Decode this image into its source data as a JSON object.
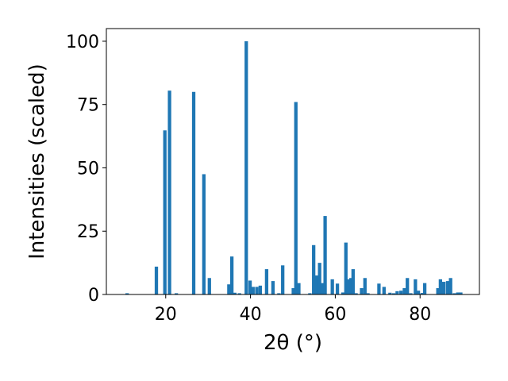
{
  "chart_data": {
    "type": "bar",
    "xlabel": "2θ (°)",
    "ylabel": "Intensities (scaled)",
    "xlim": [
      6.0,
      94.0
    ],
    "ylim": [
      0,
      105
    ],
    "xticks": [
      20,
      40,
      60,
      80
    ],
    "yticks": [
      0,
      25,
      50,
      75,
      100
    ],
    "bar_color": "#1f77b4",
    "bar_width_deg": 0.8,
    "x": [
      10.9,
      17.8,
      19.8,
      20.9,
      22.5,
      26.6,
      29.0,
      30.3,
      34.9,
      35.6,
      36.3,
      37.4,
      39.0,
      39.9,
      40.6,
      41.5,
      42.3,
      43.8,
      45.3,
      46.7,
      47.6,
      50.1,
      50.7,
      51.4,
      54.0,
      54.9,
      55.6,
      56.3,
      56.9,
      57.6,
      59.3,
      60.5,
      61.8,
      62.5,
      63.1,
      63.7,
      64.2,
      64.9,
      66.2,
      67.0,
      67.7,
      70.3,
      71.5,
      72.9,
      73.8,
      74.6,
      75.5,
      76.3,
      77.0,
      77.8,
      78.9,
      79.6,
      80.5,
      81.1,
      84.2,
      84.8,
      85.6,
      86.5,
      87.2,
      88.1,
      88.9,
      89.6
    ],
    "values": [
      0.5,
      11.0,
      64.8,
      80.5,
      0.5,
      80.0,
      47.5,
      6.5,
      4.0,
      15.0,
      0.7,
      0.5,
      100.0,
      5.5,
      3.0,
      3.0,
      3.5,
      10.0,
      5.3,
      0.5,
      11.5,
      2.5,
      76.0,
      4.5,
      0.5,
      19.5,
      7.5,
      12.5,
      4.5,
      31.0,
      6.0,
      4.3,
      0.8,
      20.5,
      6.0,
      6.5,
      10.0,
      0.5,
      2.5,
      6.5,
      0.5,
      4.3,
      3.0,
      0.7,
      0.5,
      1.3,
      1.5,
      2.5,
      6.5,
      0.5,
      6.0,
      1.5,
      0.6,
      4.5,
      2.5,
      6.0,
      5.0,
      5.3,
      6.5,
      0.5,
      0.8,
      0.8
    ]
  }
}
